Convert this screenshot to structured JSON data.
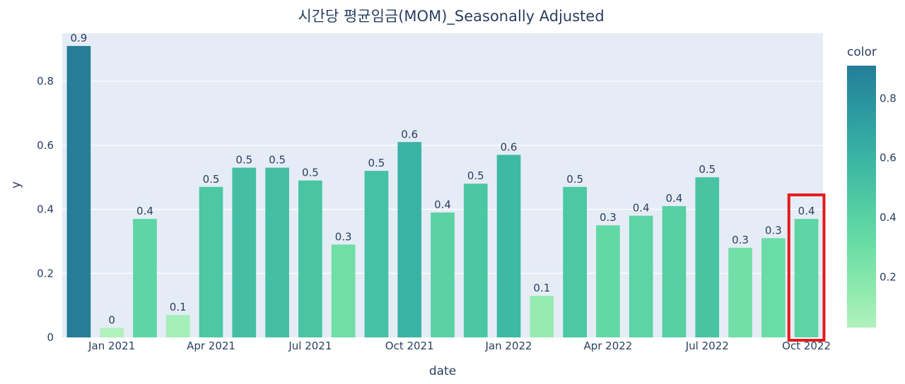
{
  "chart_data": {
    "type": "bar",
    "title": "시간당 평균임금(MOM)_Seasonally Adjusted",
    "xlabel": "date",
    "ylabel": "y",
    "ylim": [
      0,
      0.95
    ],
    "grid": true,
    "x": [
      "2020-12",
      "2021-01",
      "2021-02",
      "2021-03",
      "2021-04",
      "2021-05",
      "2021-06",
      "2021-07",
      "2021-08",
      "2021-09",
      "2021-10",
      "2021-11",
      "2021-12",
      "2022-01",
      "2022-02",
      "2022-03",
      "2022-04",
      "2022-05",
      "2022-06",
      "2022-07",
      "2022-08",
      "2022-09",
      "2022-10"
    ],
    "values": [
      0.91,
      0.03,
      0.37,
      0.07,
      0.47,
      0.53,
      0.53,
      0.49,
      0.29,
      0.52,
      0.61,
      0.39,
      0.48,
      0.57,
      0.13,
      0.47,
      0.35,
      0.38,
      0.41,
      0.5,
      0.28,
      0.31,
      0.37
    ],
    "labels": [
      "0.9",
      "0",
      "0.4",
      "0.1",
      "0.5",
      "0.5",
      "0.5",
      "0.5",
      "0.3",
      "0.5",
      "0.6",
      "0.4",
      "0.5",
      "0.6",
      "0.1",
      "0.5",
      "0.3",
      "0.4",
      "0.4",
      "0.5",
      "0.3",
      "0.3",
      "0.4"
    ],
    "x_ticks": [
      {
        "index": 1,
        "label": "Jan 2021"
      },
      {
        "index": 4,
        "label": "Apr 2021"
      },
      {
        "index": 7,
        "label": "Jul 2021"
      },
      {
        "index": 10,
        "label": "Oct 2021"
      },
      {
        "index": 13,
        "label": "Jan 2022"
      },
      {
        "index": 16,
        "label": "Apr 2022"
      },
      {
        "index": 19,
        "label": "Jul 2022"
      },
      {
        "index": 22,
        "label": "Oct 2022"
      }
    ],
    "y_ticks": [
      {
        "value": 0,
        "label": "0"
      },
      {
        "value": 0.2,
        "label": "0.2"
      },
      {
        "value": 0.4,
        "label": "0.4"
      },
      {
        "value": 0.6,
        "label": "0.6"
      },
      {
        "value": 0.8,
        "label": "0.8"
      }
    ],
    "colorbar": {
      "title": "color",
      "range": [
        0.03,
        0.91
      ],
      "ticks": [
        {
          "value": 0.2,
          "label": "0.2"
        },
        {
          "value": 0.4,
          "label": "0.4"
        },
        {
          "value": 0.6,
          "label": "0.6"
        },
        {
          "value": 0.8,
          "label": "0.8"
        }
      ],
      "colorscale": [
        "#b0f2bc",
        "#89e8ac",
        "#67dba5",
        "#4cc8a3",
        "#38b2a3",
        "#2c98a0",
        "#257d98"
      ]
    },
    "highlight": {
      "index": 22,
      "color": "#e31a1c"
    },
    "plot_bg": "#e5ecf6"
  }
}
